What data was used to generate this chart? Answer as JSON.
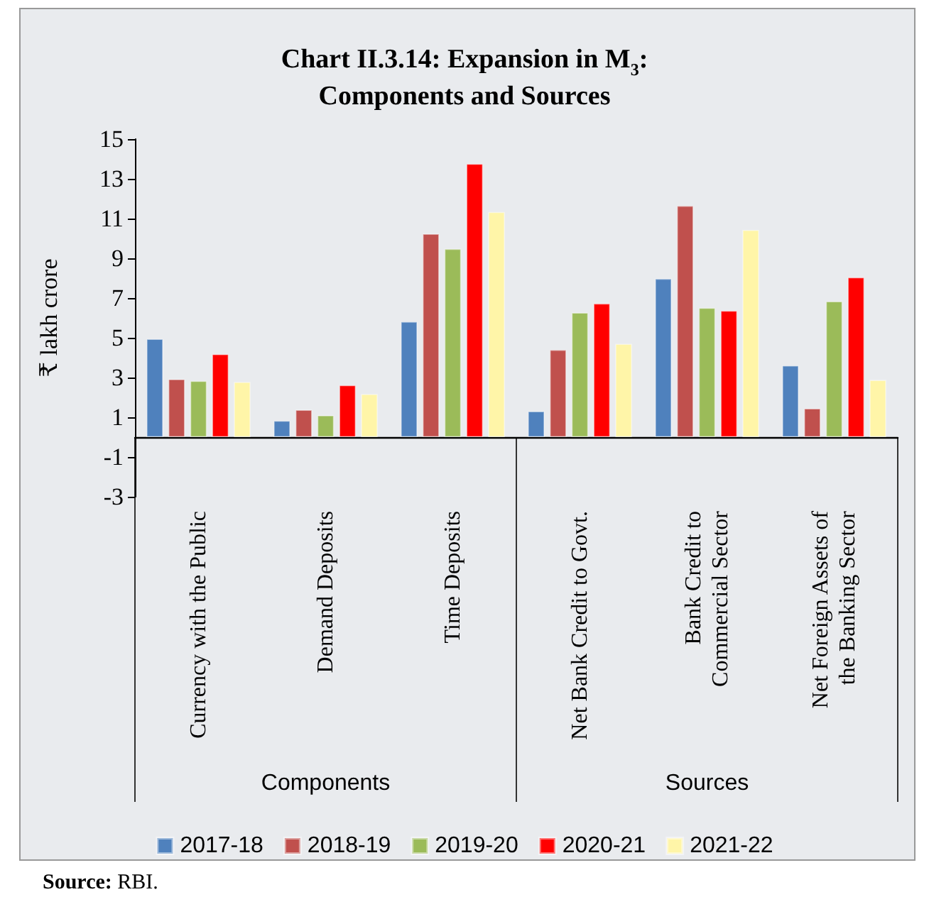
{
  "chart_data": {
    "type": "bar",
    "title": "Chart II.3.14: Expansion in M$_{3}$:\nComponents and Sources",
    "ylabel": "₹ lakh crore",
    "categories": [
      "Currency with the Public",
      "Demand Deposits",
      "Time Deposits",
      "Net Bank Credit to Govt.",
      "Bank Credit to\nCommercial Sector",
      "Net Foreign Assets of\nthe Banking Sector"
    ],
    "series": [
      {
        "name": "2017-18",
        "color": "#4f81bd",
        "values": [
          4.95,
          0.83,
          5.82,
          1.31,
          7.98,
          3.61
        ]
      },
      {
        "name": "2018-19",
        "color": "#c0504d",
        "values": [
          2.92,
          1.38,
          10.24,
          4.4,
          11.65,
          1.45
        ]
      },
      {
        "name": "2019-20",
        "color": "#9bbb59",
        "values": [
          2.83,
          1.1,
          9.48,
          6.27,
          6.51,
          6.84
        ]
      },
      {
        "name": "2020-21",
        "color": "#ff0000",
        "values": [
          4.18,
          2.62,
          13.76,
          6.73,
          6.37,
          8.05
        ]
      },
      {
        "name": "2021-22",
        "color": "#fff5a8",
        "values": [
          2.78,
          2.17,
          11.33,
          4.7,
          10.43,
          2.88
        ]
      }
    ],
    "ylim": [
      -3,
      15
    ],
    "yticks": [
      -3,
      -1,
      1,
      3,
      5,
      7,
      9,
      11,
      13,
      15
    ],
    "grid": false,
    "legend": "bottom",
    "annotations": [
      "Components",
      "Sources",
      "Source: RBI."
    ]
  }
}
